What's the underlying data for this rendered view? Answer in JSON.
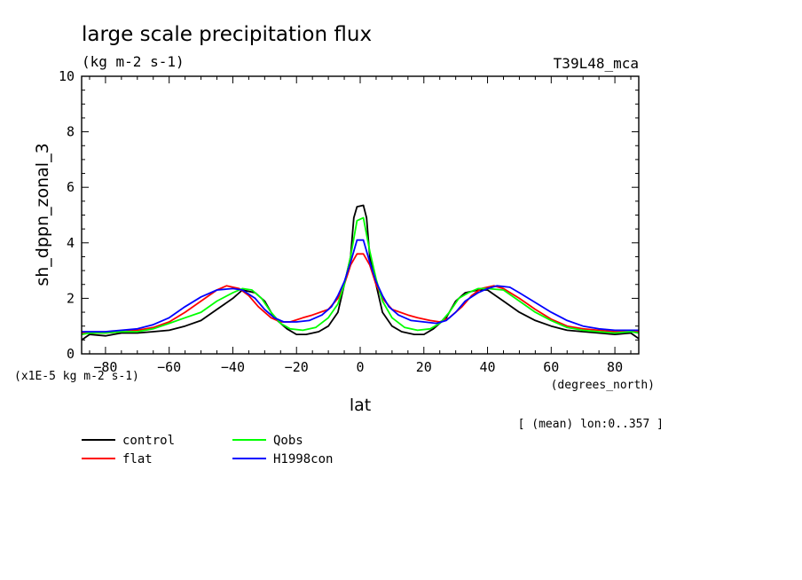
{
  "chart_data": {
    "type": "line",
    "title": "large scale precipitation flux",
    "subtitle": "(kg m-2 s-1)",
    "experiment": "T39L48_mca",
    "xlabel": "lat",
    "xunits": "(degrees_north)",
    "ylabel": "sh_dppn_zonal_3",
    "yscale_note": "(x1E-5 kg m-2 s-1)",
    "footnote": "[ (mean) lon:0..357 ]",
    "xlim": [
      -87.5,
      87.5
    ],
    "ylim": [
      0,
      10
    ],
    "xticks": [
      -80,
      -60,
      -40,
      -20,
      0,
      20,
      40,
      60,
      80
    ],
    "yticks": [
      0,
      2,
      4,
      6,
      8,
      10
    ],
    "legend_position": "bottom-left",
    "series": [
      {
        "name": "control",
        "color": "#000000",
        "points": [
          [
            -87.5,
            0.5
          ],
          [
            -85,
            0.7
          ],
          [
            -80,
            0.65
          ],
          [
            -75,
            0.75
          ],
          [
            -70,
            0.75
          ],
          [
            -65,
            0.8
          ],
          [
            -60,
            0.85
          ],
          [
            -55,
            1.0
          ],
          [
            -50,
            1.2
          ],
          [
            -45,
            1.6
          ],
          [
            -40,
            2.0
          ],
          [
            -37,
            2.3
          ],
          [
            -33,
            2.2
          ],
          [
            -30,
            1.9
          ],
          [
            -27,
            1.3
          ],
          [
            -23,
            0.9
          ],
          [
            -20,
            0.7
          ],
          [
            -17,
            0.7
          ],
          [
            -13,
            0.8
          ],
          [
            -10,
            1.0
          ],
          [
            -7,
            1.5
          ],
          [
            -5,
            2.5
          ],
          [
            -3,
            3.5
          ],
          [
            -2,
            4.9
          ],
          [
            -1,
            5.3
          ],
          [
            1,
            5.35
          ],
          [
            2,
            4.9
          ],
          [
            3,
            3.5
          ],
          [
            5,
            2.5
          ],
          [
            7,
            1.5
          ],
          [
            10,
            1.0
          ],
          [
            13,
            0.8
          ],
          [
            17,
            0.7
          ],
          [
            20,
            0.7
          ],
          [
            23,
            0.9
          ],
          [
            27,
            1.3
          ],
          [
            30,
            1.9
          ],
          [
            33,
            2.2
          ],
          [
            37,
            2.3
          ],
          [
            40,
            2.3
          ],
          [
            45,
            1.9
          ],
          [
            50,
            1.5
          ],
          [
            55,
            1.2
          ],
          [
            60,
            1.0
          ],
          [
            65,
            0.85
          ],
          [
            70,
            0.8
          ],
          [
            75,
            0.75
          ],
          [
            80,
            0.7
          ],
          [
            85,
            0.75
          ],
          [
            87.5,
            0.55
          ]
        ]
      },
      {
        "name": "flat",
        "color": "#ff0000",
        "points": [
          [
            -87.5,
            0.75
          ],
          [
            -85,
            0.75
          ],
          [
            -80,
            0.75
          ],
          [
            -75,
            0.8
          ],
          [
            -70,
            0.85
          ],
          [
            -65,
            0.95
          ],
          [
            -60,
            1.15
          ],
          [
            -55,
            1.5
          ],
          [
            -50,
            1.9
          ],
          [
            -45,
            2.3
          ],
          [
            -42,
            2.45
          ],
          [
            -38,
            2.35
          ],
          [
            -35,
            2.1
          ],
          [
            -32,
            1.7
          ],
          [
            -28,
            1.3
          ],
          [
            -25,
            1.15
          ],
          [
            -22,
            1.15
          ],
          [
            -18,
            1.3
          ],
          [
            -15,
            1.4
          ],
          [
            -10,
            1.6
          ],
          [
            -7,
            2.0
          ],
          [
            -5,
            2.5
          ],
          [
            -3,
            3.2
          ],
          [
            -1,
            3.6
          ],
          [
            1,
            3.6
          ],
          [
            3,
            3.2
          ],
          [
            5,
            2.5
          ],
          [
            7,
            2.0
          ],
          [
            10,
            1.6
          ],
          [
            15,
            1.4
          ],
          [
            18,
            1.3
          ],
          [
            22,
            1.2
          ],
          [
            25,
            1.15
          ],
          [
            28,
            1.3
          ],
          [
            32,
            1.7
          ],
          [
            35,
            2.1
          ],
          [
            38,
            2.35
          ],
          [
            42,
            2.45
          ],
          [
            45,
            2.35
          ],
          [
            50,
            2.0
          ],
          [
            55,
            1.6
          ],
          [
            60,
            1.25
          ],
          [
            65,
            1.0
          ],
          [
            70,
            0.9
          ],
          [
            75,
            0.85
          ],
          [
            80,
            0.8
          ],
          [
            85,
            0.8
          ],
          [
            87.5,
            0.8
          ]
        ]
      },
      {
        "name": "Qobs",
        "color": "#00ff00",
        "points": [
          [
            -87.5,
            0.7
          ],
          [
            -85,
            0.75
          ],
          [
            -80,
            0.75
          ],
          [
            -75,
            0.8
          ],
          [
            -70,
            0.8
          ],
          [
            -65,
            0.9
          ],
          [
            -60,
            1.1
          ],
          [
            -55,
            1.3
          ],
          [
            -50,
            1.5
          ],
          [
            -45,
            1.9
          ],
          [
            -40,
            2.2
          ],
          [
            -37,
            2.35
          ],
          [
            -34,
            2.3
          ],
          [
            -31,
            2.0
          ],
          [
            -28,
            1.5
          ],
          [
            -25,
            1.1
          ],
          [
            -22,
            0.9
          ],
          [
            -18,
            0.85
          ],
          [
            -14,
            0.95
          ],
          [
            -10,
            1.3
          ],
          [
            -7,
            1.8
          ],
          [
            -5,
            2.5
          ],
          [
            -3,
            3.5
          ],
          [
            -1,
            4.8
          ],
          [
            1,
            4.9
          ],
          [
            3,
            3.7
          ],
          [
            5,
            2.7
          ],
          [
            7,
            1.9
          ],
          [
            10,
            1.3
          ],
          [
            14,
            0.95
          ],
          [
            18,
            0.85
          ],
          [
            22,
            0.9
          ],
          [
            25,
            1.1
          ],
          [
            28,
            1.5
          ],
          [
            31,
            2.0
          ],
          [
            34,
            2.2
          ],
          [
            37,
            2.35
          ],
          [
            40,
            2.35
          ],
          [
            45,
            2.3
          ],
          [
            50,
            1.9
          ],
          [
            55,
            1.5
          ],
          [
            60,
            1.2
          ],
          [
            65,
            0.95
          ],
          [
            70,
            0.85
          ],
          [
            75,
            0.8
          ],
          [
            80,
            0.75
          ],
          [
            85,
            0.8
          ],
          [
            87.5,
            0.75
          ]
        ]
      },
      {
        "name": "H1998con",
        "color": "#0000ff",
        "points": [
          [
            -87.5,
            0.8
          ],
          [
            -85,
            0.8
          ],
          [
            -80,
            0.8
          ],
          [
            -75,
            0.85
          ],
          [
            -70,
            0.9
          ],
          [
            -65,
            1.05
          ],
          [
            -60,
            1.3
          ],
          [
            -55,
            1.7
          ],
          [
            -50,
            2.05
          ],
          [
            -45,
            2.3
          ],
          [
            -40,
            2.35
          ],
          [
            -37,
            2.3
          ],
          [
            -33,
            2.0
          ],
          [
            -30,
            1.6
          ],
          [
            -27,
            1.3
          ],
          [
            -24,
            1.15
          ],
          [
            -20,
            1.15
          ],
          [
            -16,
            1.2
          ],
          [
            -12,
            1.4
          ],
          [
            -9,
            1.7
          ],
          [
            -7,
            2.1
          ],
          [
            -5,
            2.6
          ],
          [
            -3,
            3.3
          ],
          [
            -1,
            4.1
          ],
          [
            1,
            4.1
          ],
          [
            3,
            3.3
          ],
          [
            5,
            2.6
          ],
          [
            7,
            2.1
          ],
          [
            9,
            1.7
          ],
          [
            12,
            1.4
          ],
          [
            16,
            1.2
          ],
          [
            20,
            1.15
          ],
          [
            24,
            1.1
          ],
          [
            27,
            1.2
          ],
          [
            30,
            1.5
          ],
          [
            33,
            1.9
          ],
          [
            37,
            2.2
          ],
          [
            40,
            2.35
          ],
          [
            43,
            2.45
          ],
          [
            47,
            2.4
          ],
          [
            50,
            2.2
          ],
          [
            55,
            1.85
          ],
          [
            60,
            1.5
          ],
          [
            65,
            1.2
          ],
          [
            70,
            1.0
          ],
          [
            75,
            0.9
          ],
          [
            80,
            0.85
          ],
          [
            85,
            0.85
          ],
          [
            87.5,
            0.85
          ]
        ]
      }
    ]
  }
}
